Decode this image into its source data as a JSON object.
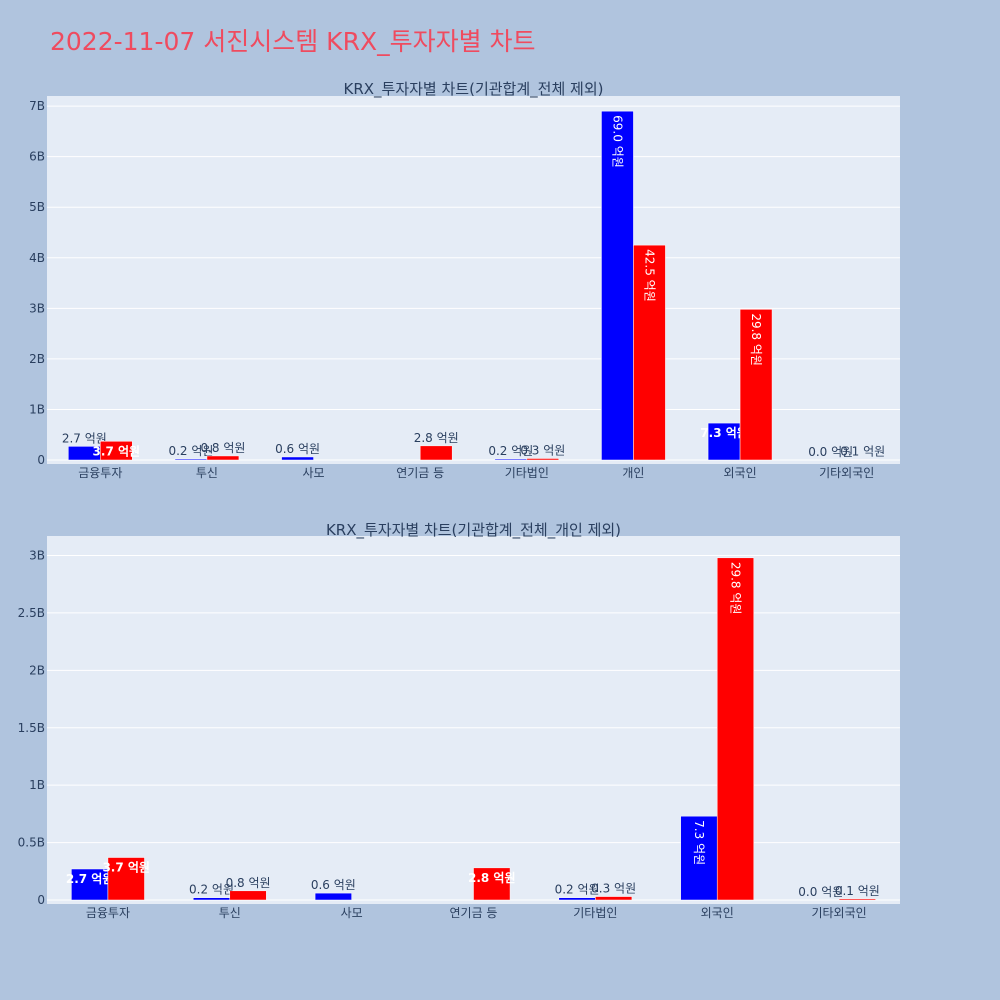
{
  "page": {
    "title": "2022-11-07 서진시스템 KRX_투자자별 차트"
  },
  "colors": {
    "background": "#b0c4de",
    "plot_bg": "#e5ecf6",
    "title": "#ef4b5f",
    "series_a": "#0000ff",
    "series_b": "#ff0000",
    "text": "#2a3f5f"
  },
  "chart_data": [
    {
      "type": "bar",
      "title": "KRX_투자자별 차트(기관합계_전체 제외)",
      "categories": [
        "금융투자",
        "투신",
        "사모",
        "연기금 등",
        "기타법인",
        "개인",
        "외국인",
        "기타외국인"
      ],
      "ylim": [
        0,
        7200000000
      ],
      "ytick_values": [
        0,
        1000000000,
        2000000000,
        3000000000,
        4000000000,
        5000000000,
        6000000000,
        7000000000
      ],
      "ytick_labels": [
        "0",
        "1B",
        "2B",
        "3B",
        "4B",
        "5B",
        "6B",
        "7B"
      ],
      "grid": true,
      "series": [
        {
          "color": "#0000ff",
          "values": [
            270000000,
            20000000,
            60000000,
            0,
            20000000,
            6900000000,
            730000000,
            0
          ],
          "labels": [
            "2.7 억원",
            "0.2 억원",
            "0.6 억원",
            "",
            "0.2 억원",
            "69.0 억원",
            "7.3 억원",
            "0.0 억원"
          ]
        },
        {
          "color": "#ff0000",
          "values": [
            370000000,
            80000000,
            0,
            280000000,
            30000000,
            4250000000,
            2980000000,
            10000000
          ],
          "labels": [
            "3.7 억원",
            "0.8 억원",
            "",
            "2.8 억원",
            "0.3 억원",
            "42.5 억원",
            "29.8 억원",
            "0.1 억원"
          ]
        }
      ]
    },
    {
      "type": "bar",
      "title": "KRX_투자자별 차트(기관합계_전체_개인 제외)",
      "categories": [
        "금융투자",
        "투신",
        "사모",
        "연기금 등",
        "기타법인",
        "외국인",
        "기타외국인"
      ],
      "ylim": [
        0,
        3170000000
      ],
      "ytick_values": [
        0,
        500000000,
        1000000000,
        1500000000,
        2000000000,
        2500000000,
        3000000000
      ],
      "ytick_labels": [
        "0",
        "0.5B",
        "1B",
        "1.5B",
        "2B",
        "2.5B",
        "3B"
      ],
      "grid": true,
      "series": [
        {
          "color": "#0000ff",
          "values": [
            270000000,
            20000000,
            60000000,
            0,
            20000000,
            730000000,
            0
          ],
          "labels": [
            "2.7 억원",
            "0.2 억원",
            "0.6 억원",
            "",
            "0.2 억원",
            "7.3 억원",
            "0.0 억원"
          ]
        },
        {
          "color": "#ff0000",
          "values": [
            370000000,
            80000000,
            0,
            280000000,
            30000000,
            2980000000,
            10000000
          ],
          "labels": [
            "3.7 억원",
            "0.8 억원",
            "",
            "2.8 억원",
            "0.3 억원",
            "29.8 억원",
            "0.1 억원"
          ]
        }
      ]
    }
  ]
}
